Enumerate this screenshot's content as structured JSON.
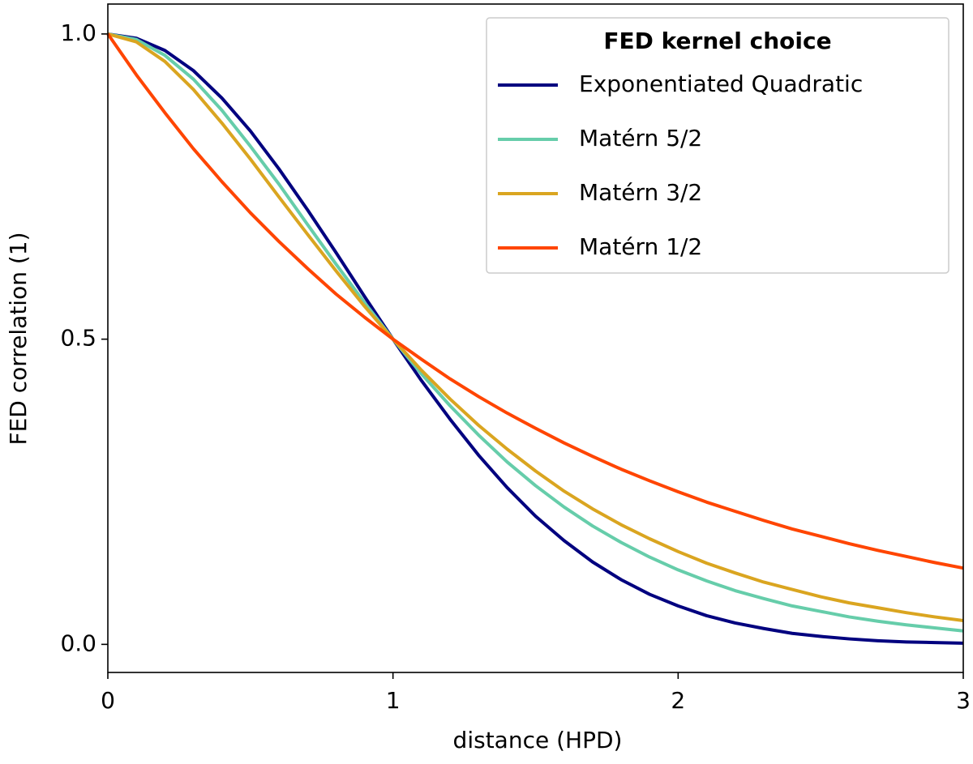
{
  "chart_data": {
    "type": "line",
    "xlabel": "distance (HPD)",
    "ylabel": "FED correlation (1)",
    "x": [
      0,
      0.1,
      0.2,
      0.3,
      0.4,
      0.5,
      0.6,
      0.7,
      0.8,
      0.9,
      1,
      1.1,
      1.2,
      1.3,
      1.4,
      1.5,
      1.6,
      1.7,
      1.8,
      1.9,
      2,
      2.1,
      2.2,
      2.3,
      2.4,
      2.5,
      2.6,
      2.7,
      2.8,
      2.9,
      3
    ],
    "series": [
      {
        "name": "Exponentiated Quadratic",
        "color": "#00007f",
        "values": [
          1,
          0.993,
          0.973,
          0.94,
          0.895,
          0.841,
          0.779,
          0.712,
          0.642,
          0.57,
          0.5,
          0.432,
          0.369,
          0.31,
          0.257,
          0.21,
          0.17,
          0.135,
          0.106,
          0.082,
          0.063,
          0.047,
          0.035,
          0.026,
          0.018,
          0.013,
          0.009,
          0.006,
          0.004,
          0.003,
          0.002
        ]
      },
      {
        "name": "Matérn 5/2",
        "color": "#66cdaa",
        "values": [
          1,
          0.991,
          0.965,
          0.926,
          0.875,
          0.816,
          0.754,
          0.688,
          0.623,
          0.56,
          0.5,
          0.443,
          0.391,
          0.343,
          0.299,
          0.26,
          0.225,
          0.194,
          0.167,
          0.143,
          0.122,
          0.104,
          0.088,
          0.075,
          0.063,
          0.054,
          0.045,
          0.038,
          0.032,
          0.027,
          0.022
        ]
      },
      {
        "name": "Matérn 3/2",
        "color": "#daa520",
        "values": [
          1,
          0.987,
          0.955,
          0.909,
          0.854,
          0.795,
          0.733,
          0.672,
          0.612,
          0.554,
          0.5,
          0.449,
          0.402,
          0.359,
          0.32,
          0.284,
          0.251,
          0.222,
          0.196,
          0.173,
          0.152,
          0.133,
          0.117,
          0.102,
          0.09,
          0.078,
          0.068,
          0.06,
          0.052,
          0.045,
          0.039
        ]
      },
      {
        "name": "Matérn 1/2",
        "color": "#ff4500",
        "values": [
          1,
          0.933,
          0.871,
          0.812,
          0.758,
          0.707,
          0.66,
          0.616,
          0.574,
          0.536,
          0.5,
          0.467,
          0.435,
          0.406,
          0.379,
          0.354,
          0.33,
          0.308,
          0.287,
          0.268,
          0.25,
          0.233,
          0.218,
          0.203,
          0.189,
          0.177,
          0.165,
          0.154,
          0.144,
          0.134,
          0.125
        ]
      }
    ],
    "legend_title": "FED kernel choice",
    "legend": "upper right",
    "xlim": [
      0,
      3
    ],
    "xticks": [
      0,
      1,
      2,
      3
    ],
    "ylim": [
      -0.046,
      1.049
    ],
    "yticks": [
      {
        "value": 0,
        "label": "0.0"
      },
      0.5,
      {
        "value": 1,
        "label": "1.0"
      }
    ],
    "grid": false
  }
}
